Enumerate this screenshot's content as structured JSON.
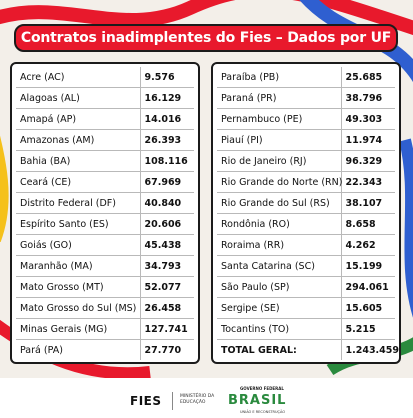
{
  "title": "Contratos inadimplentes do Fies – Dados por UF",
  "left_rows": [
    {
      "uf": "Acre (AC)",
      "value": "9.576"
    },
    {
      "uf": "Alagoas (AL)",
      "value": "16.129"
    },
    {
      "uf": "Amapá (AP)",
      "value": "14.016"
    },
    {
      "uf": "Amazonas (AM)",
      "value": "26.393"
    },
    {
      "uf": "Bahia (BA)",
      "value": "108.116"
    },
    {
      "uf": "Ceará (CE)",
      "value": "67.969"
    },
    {
      "uf": "Distrito Federal (DF)",
      "value": "40.840"
    },
    {
      "uf": "Espírito Santo (ES)",
      "value": "20.606"
    },
    {
      "uf": "Goiás (GO)",
      "value": "45.438"
    },
    {
      "uf": "Maranhão (MA)",
      "value": "34.793"
    },
    {
      "uf": "Mato Grosso (MT)",
      "value": "52.077"
    },
    {
      "uf": "Mato Grosso do Sul (MS)",
      "value": "26.458"
    },
    {
      "uf": "Minas Gerais (MG)",
      "value": "127.741"
    },
    {
      "uf": "Pará (PA)",
      "value": "27.770"
    }
  ],
  "right_rows": [
    {
      "uf": "Paraíba (PB)",
      "value": "25.685"
    },
    {
      "uf": "Paraná (PR)",
      "value": "38.796"
    },
    {
      "uf": "Pernambuco (PE)",
      "value": "49.303"
    },
    {
      "uf": "Piauí (PI)",
      "value": "11.974"
    },
    {
      "uf": "Rio de Janeiro (RJ)",
      "value": "96.329"
    },
    {
      "uf": "Rio Grande do Norte (RN)",
      "value": "22.343"
    },
    {
      "uf": "Rio Grande do Sul (RS)",
      "value": "38.107"
    },
    {
      "uf": "Rondônia (RO)",
      "value": "8.658"
    },
    {
      "uf": "Roraima (RR)",
      "value": "4.262"
    },
    {
      "uf": "Santa Catarina (SC)",
      "value": "15.199"
    },
    {
      "uf": "São Paulo (SP)",
      "value": "294.061"
    },
    {
      "uf": "Sergipe (SE)",
      "value": "15.605"
    },
    {
      "uf": "Tocantins (TO)",
      "value": "5.215"
    }
  ],
  "total": {
    "label": "TOTAL GERAL:",
    "value": "1.243.459"
  },
  "footer": {
    "fies_logo": "FIES",
    "ministerio": "MINISTÉRIO DA EDUCAÇÃO",
    "gov_label": "GOVERNO FEDERAL",
    "brasil": "BRASIL",
    "gov_sub": "UNIÃO E RECONSTRUÇÃO"
  },
  "colors": {
    "banner": "#e8192c",
    "ribbon_red": "#e8192c",
    "ribbon_blue": "#2f5fd0",
    "ribbon_yellow": "#f5c11a",
    "ribbon_green": "#2a8a3e",
    "background": "#f3efe9"
  }
}
